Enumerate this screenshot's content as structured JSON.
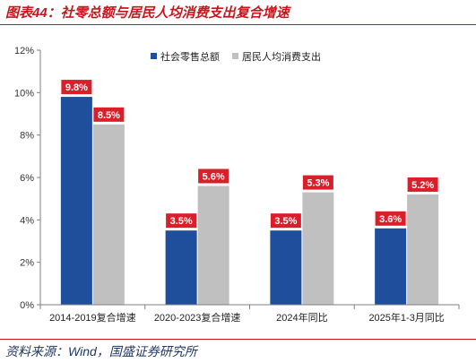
{
  "figure": {
    "title": "图表44：社零总额与居民人均消费支出复合增速",
    "source": "资料来源：Wind，国盛证券研究所"
  },
  "colors": {
    "series1": "#1f4e9c",
    "series2": "#c0c0c0",
    "label_bg": "#d9202a",
    "accent": "#c8161d"
  },
  "chart_data": {
    "type": "bar",
    "title": "",
    "xlabel": "",
    "ylabel": "",
    "categories": [
      "2014-2019复合增速",
      "2020-2023复合增速",
      "2024年同比",
      "2025年1-3月同比"
    ],
    "series": [
      {
        "name": "社会零售总额",
        "values": [
          9.8,
          3.5,
          3.5,
          3.6
        ],
        "labels": [
          "9.8%",
          "3.5%",
          "3.5%",
          "3.6%"
        ]
      },
      {
        "name": "居民人均消费支出",
        "values": [
          8.5,
          5.6,
          5.3,
          5.2
        ],
        "labels": [
          "8.5%",
          "5.6%",
          "5.3%",
          "5.2%"
        ]
      }
    ],
    "ylim": [
      0,
      12
    ],
    "yticks": [
      0,
      2,
      4,
      6,
      8,
      10,
      12
    ],
    "ytick_labels": [
      "0%",
      "2%",
      "4%",
      "6%",
      "8%",
      "10%",
      "12%"
    ],
    "grid": false,
    "legend": "top-center"
  }
}
